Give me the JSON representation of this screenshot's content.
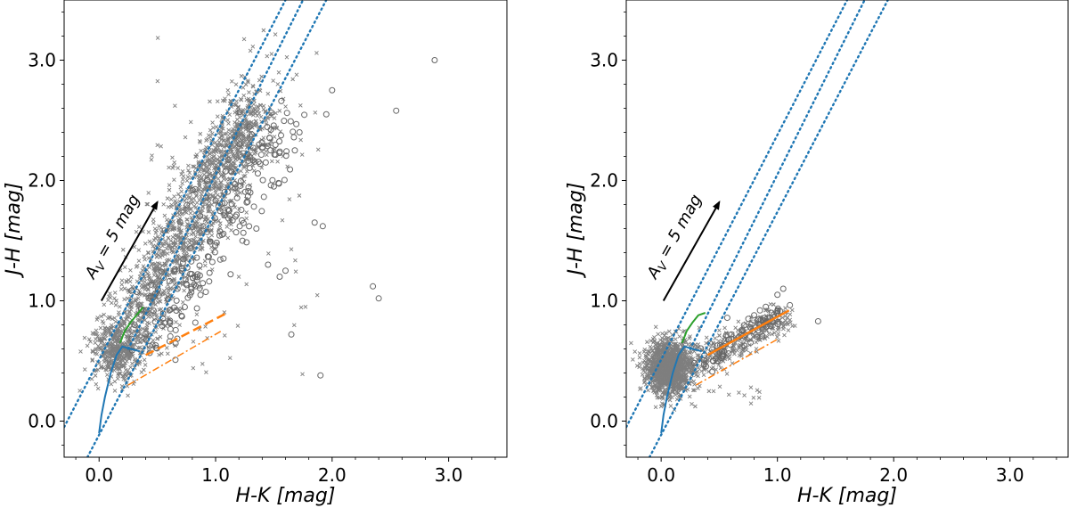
{
  "chart_data": [
    {
      "type": "scatter",
      "panel": "left",
      "xlabel": "H-K [mag]",
      "ylabel": "J-H [mag]",
      "xlim": [
        -0.3,
        3.5
      ],
      "ylim": [
        -0.3,
        3.5
      ],
      "xticks": [
        "0.0",
        "1.0",
        "2.0",
        "3.0"
      ],
      "yticks": [
        "0.0",
        "1.0",
        "2.0",
        "3.0"
      ],
      "xtick_values": [
        0,
        1,
        2,
        3
      ],
      "ytick_values": [
        0,
        1,
        2,
        3
      ],
      "annotation": {
        "text": "A",
        "subscript": "V",
        "rest": " = 5 mag",
        "arrow_from": [
          0.02,
          1.0
        ],
        "arrow_to": [
          0.5,
          1.82
        ]
      },
      "reddening_lines": [
        {
          "color": "#1f77b4",
          "points": [
            [
              -0.3,
              -0.05
            ],
            [
              1.6,
              3.5
            ]
          ]
        },
        {
          "color": "#1f77b4",
          "points": [
            [
              0.25,
              0.6
            ],
            [
              1.75,
              3.5
            ]
          ]
        },
        {
          "color": "#1f77b4",
          "points": [
            [
              -0.1,
              -0.3
            ],
            [
              1.95,
              3.5
            ]
          ]
        }
      ],
      "dwarf_locus": {
        "color": "#1f77b4",
        "points": [
          [
            0.0,
            -0.1
          ],
          [
            0.02,
            0.05
          ],
          [
            0.05,
            0.2
          ],
          [
            0.1,
            0.4
          ],
          [
            0.15,
            0.55
          ],
          [
            0.2,
            0.62
          ],
          [
            0.27,
            0.6
          ],
          [
            0.35,
            0.58
          ]
        ]
      },
      "giant_locus": {
        "color": "#2ca02c",
        "points": [
          [
            0.18,
            0.65
          ],
          [
            0.22,
            0.75
          ],
          [
            0.27,
            0.82
          ],
          [
            0.32,
            0.88
          ],
          [
            0.38,
            0.95
          ]
        ]
      },
      "ctts_locus": {
        "color": "#ff7f0e",
        "points": [
          [
            0.4,
            0.55
          ],
          [
            1.1,
            0.9
          ]
        ]
      },
      "ctts_dashdot": {
        "color": "#ff7f0e",
        "points": [
          [
            0.25,
            0.3
          ],
          [
            1.05,
            0.75
          ]
        ]
      },
      "circles": [
        [
          1.6,
          1.25
        ],
        [
          1.55,
          1.2
        ],
        [
          1.65,
          0.72
        ],
        [
          1.9,
          0.38
        ],
        [
          2.35,
          1.12
        ],
        [
          2.4,
          1.02
        ],
        [
          1.85,
          1.65
        ],
        [
          1.92,
          1.62
        ],
        [
          2.0,
          2.75
        ],
        [
          2.55,
          2.58
        ],
        [
          2.88,
          3.0
        ],
        [
          1.72,
          2.4
        ],
        [
          1.95,
          2.55
        ],
        [
          1.68,
          2.25
        ],
        [
          1.35,
          1.6
        ],
        [
          1.45,
          1.3
        ],
        [
          1.5,
          1.95
        ]
      ],
      "scatter_color": "#7f7f7f"
    },
    {
      "type": "scatter",
      "panel": "right",
      "xlabel": "H-K [mag]",
      "ylabel": "J-H [mag]",
      "xlim": [
        -0.3,
        3.5
      ],
      "ylim": [
        -0.3,
        3.5
      ],
      "xticks": [
        "0.0",
        "1.0",
        "2.0",
        "3.0"
      ],
      "yticks": [
        "0.0",
        "1.0",
        "2.0",
        "3.0"
      ],
      "xtick_values": [
        0,
        1,
        2,
        3
      ],
      "ytick_values": [
        0,
        1,
        2,
        3
      ],
      "annotation": {
        "text": "A",
        "subscript": "V",
        "rest": " = 5 mag",
        "arrow_from": [
          0.02,
          1.0
        ],
        "arrow_to": [
          0.5,
          1.82
        ]
      },
      "reddening_lines": [
        {
          "color": "#1f77b4",
          "points": [
            [
              -0.3,
              -0.05
            ],
            [
              1.6,
              3.5
            ]
          ]
        },
        {
          "color": "#1f77b4",
          "points": [
            [
              0.25,
              0.6
            ],
            [
              1.75,
              3.5
            ]
          ]
        },
        {
          "color": "#1f77b4",
          "points": [
            [
              -0.1,
              -0.3
            ],
            [
              1.95,
              3.5
            ]
          ]
        }
      ],
      "dwarf_locus": {
        "color": "#1f77b4",
        "points": [
          [
            0.0,
            -0.1
          ],
          [
            0.02,
            0.05
          ],
          [
            0.05,
            0.2
          ],
          [
            0.1,
            0.4
          ],
          [
            0.15,
            0.55
          ],
          [
            0.2,
            0.62
          ],
          [
            0.27,
            0.6
          ],
          [
            0.35,
            0.58
          ]
        ]
      },
      "giant_locus": {
        "color": "#2ca02c",
        "points": [
          [
            0.18,
            0.65
          ],
          [
            0.22,
            0.75
          ],
          [
            0.27,
            0.82
          ],
          [
            0.32,
            0.88
          ],
          [
            0.38,
            0.9
          ]
        ]
      },
      "ctts_locus": {
        "color": "#ff7f0e",
        "points": [
          [
            0.4,
            0.55
          ],
          [
            1.1,
            0.92
          ]
        ]
      },
      "ctts_dashdot": {
        "color": "#ff7f0e",
        "points": [
          [
            0.3,
            0.3
          ],
          [
            1.0,
            0.68
          ]
        ]
      },
      "circles": [
        [
          1.35,
          0.83
        ],
        [
          1.05,
          1.1
        ],
        [
          1.0,
          1.05
        ],
        [
          0.95,
          0.9
        ],
        [
          0.9,
          0.95
        ],
        [
          0.85,
          0.92
        ],
        [
          0.8,
          0.88
        ],
        [
          0.75,
          0.85
        ],
        [
          0.9,
          0.82
        ],
        [
          1.0,
          0.92
        ],
        [
          0.7,
          0.75
        ],
        [
          0.85,
          0.8
        ]
      ],
      "scatter_color": "#7f7f7f"
    }
  ]
}
